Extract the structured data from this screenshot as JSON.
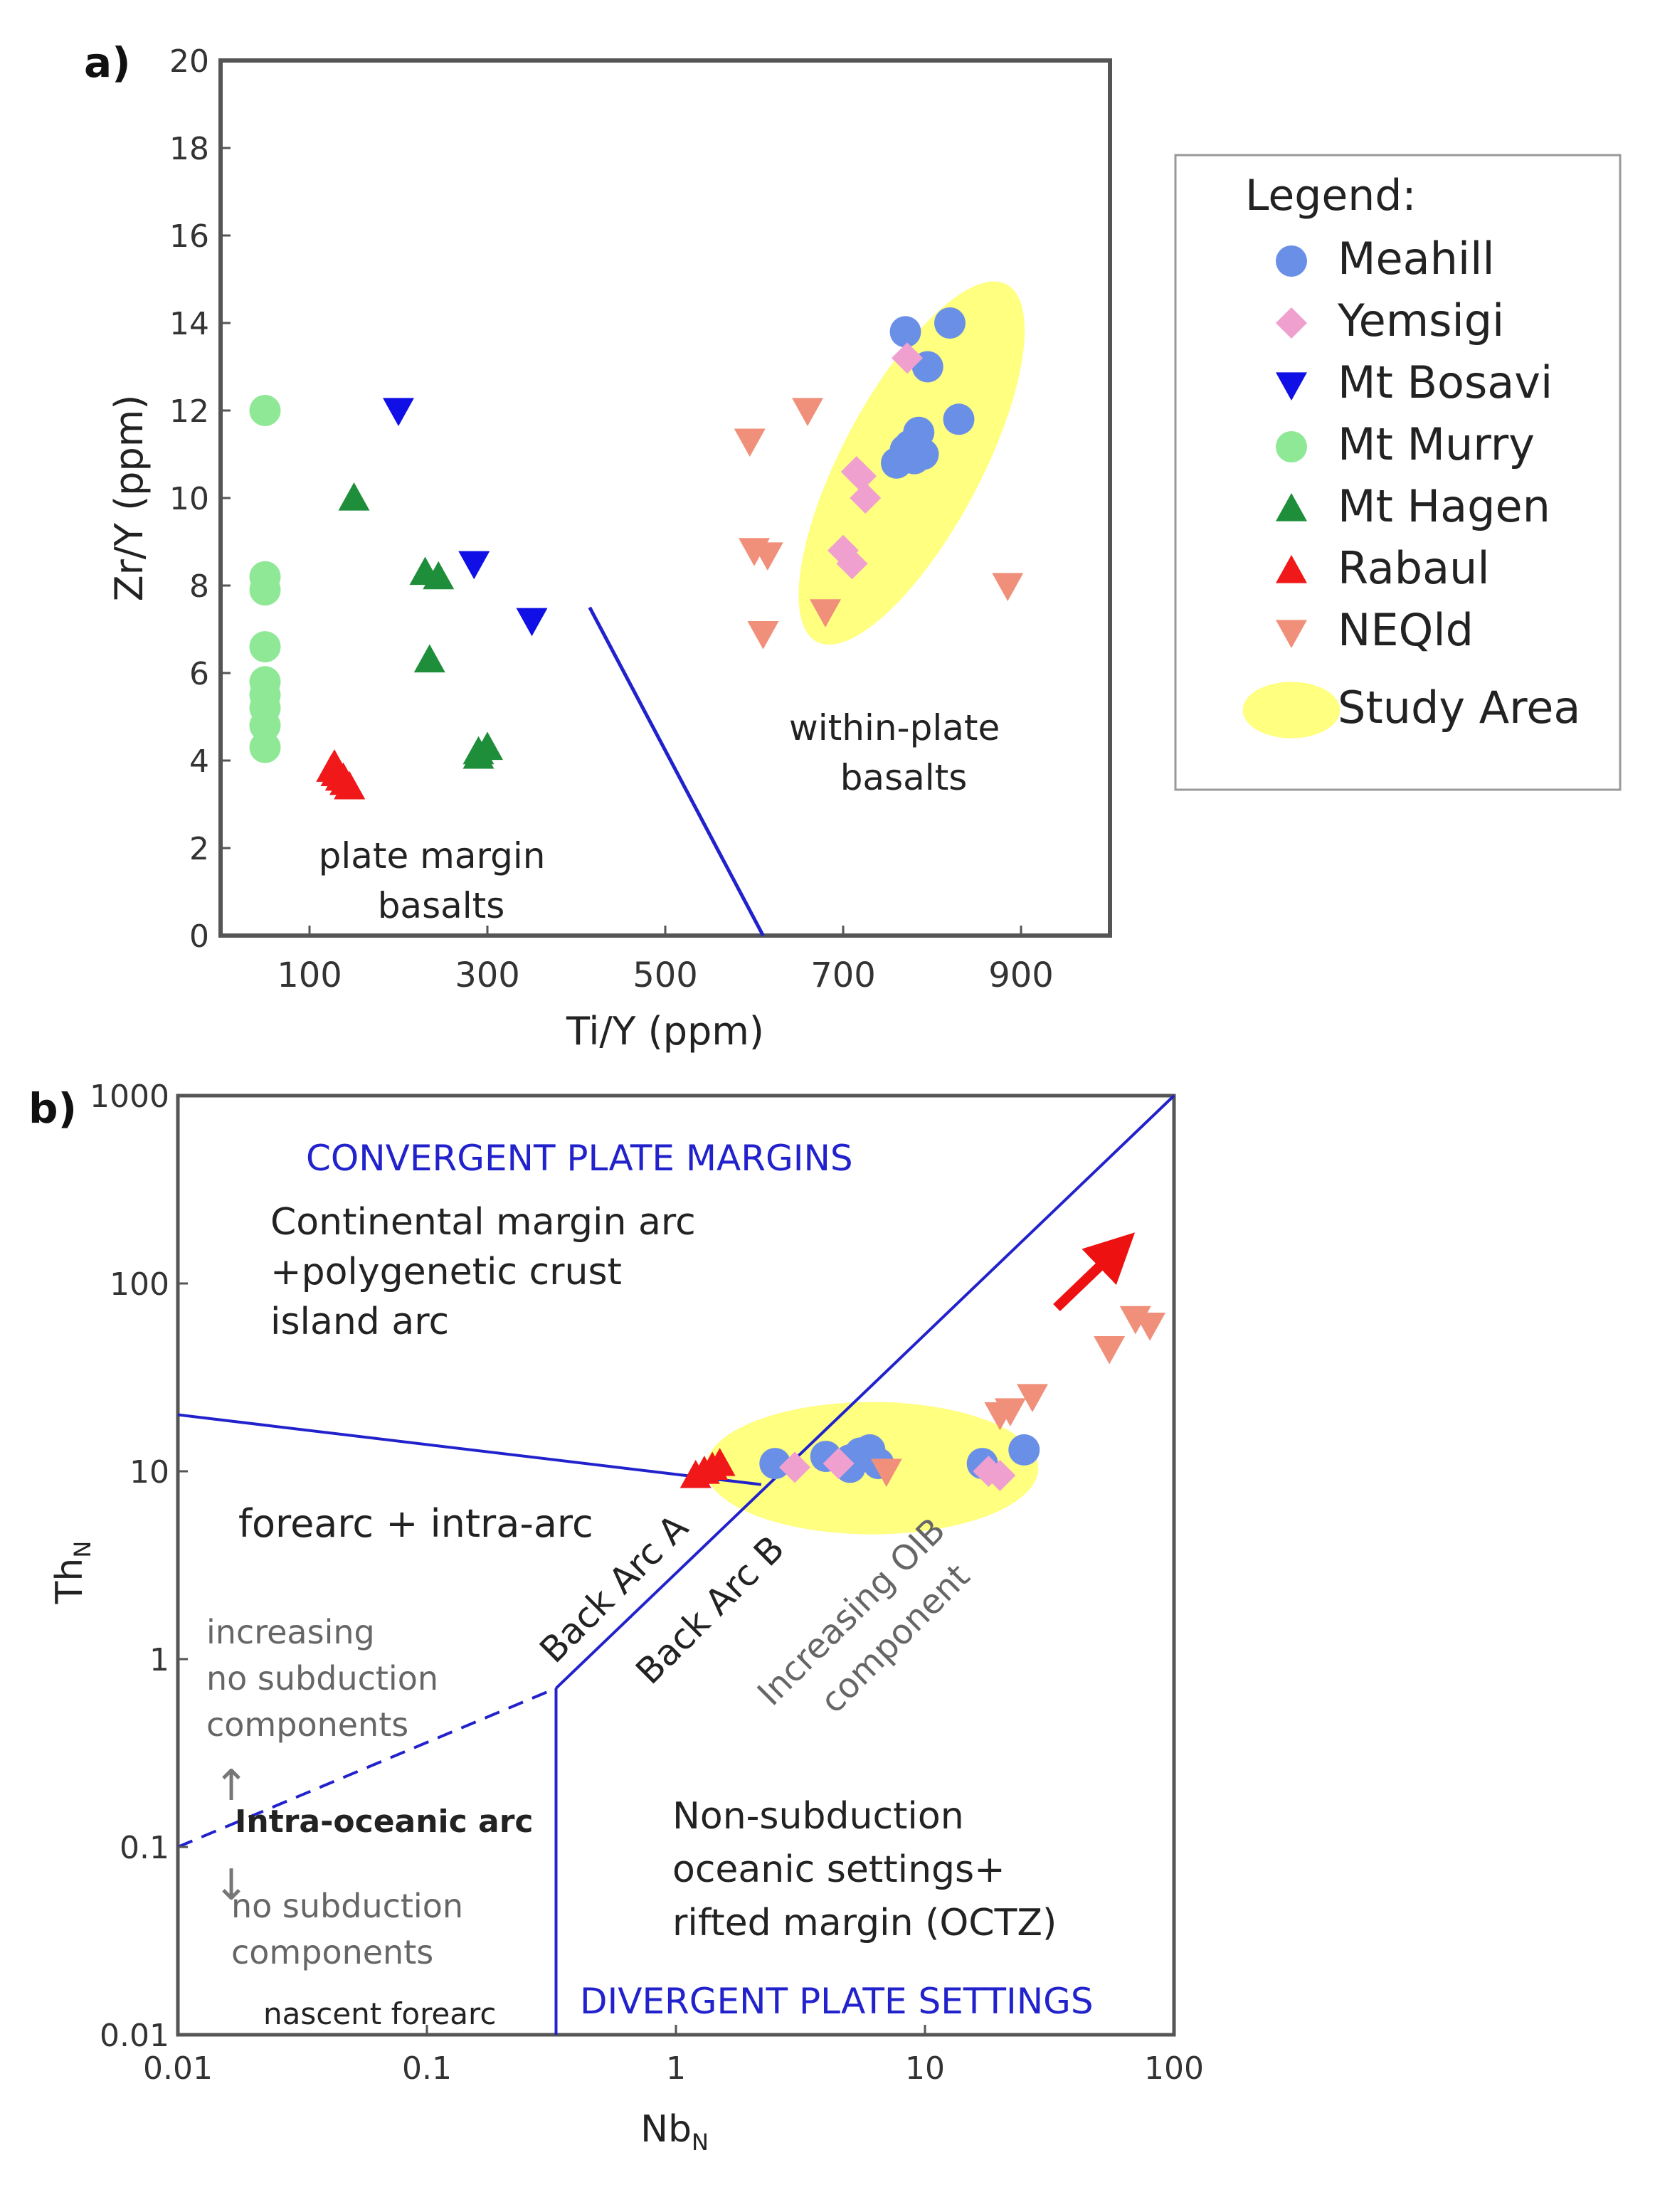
{
  "panel_labels": {
    "a": "a)",
    "b": "b)"
  },
  "legend": {
    "title": "Legend:",
    "items": [
      {
        "label": "Meahill",
        "marker": "circle",
        "color": "#6A8FE6"
      },
      {
        "label": "Yemsigi",
        "marker": "diamond",
        "color": "#F0A0CF"
      },
      {
        "label": "Mt Bosavi",
        "marker": "tri-down",
        "color": "#1010E6"
      },
      {
        "label": "Mt Murry",
        "marker": "circle",
        "color": "#8FE896"
      },
      {
        "label": "Mt Hagen",
        "marker": "tri-up",
        "color": "#1E8E3A"
      },
      {
        "label": "Rabaul",
        "marker": "tri-up",
        "color": "#F01818"
      },
      {
        "label": "NEQld",
        "marker": "tri-down",
        "color": "#F0907A"
      },
      {
        "label": "Study Area",
        "marker": "ellipse",
        "color": "#FFFF80"
      }
    ]
  },
  "colors": {
    "boundary": "#2222CC",
    "field_title": "#2222CC",
    "arrow": "#EE1111",
    "study_area": "#FFFF80"
  },
  "chart_data": [
    {
      "type": "scatter",
      "xlabel": "Ti/Y (ppm)",
      "ylabel": "Zr/Y (ppm)",
      "xlim": [
        0,
        1000
      ],
      "ylim": [
        0,
        20
      ],
      "xticks": [
        100,
        300,
        500,
        700,
        900
      ],
      "yticks": [
        0,
        2,
        4,
        6,
        8,
        10,
        12,
        14,
        16,
        18,
        20
      ],
      "grid": false,
      "boundary_line": {
        "x": [
          415,
          610
        ],
        "y": [
          7.5,
          0
        ]
      },
      "field_labels": [
        {
          "lines": [
            "plate margin",
            "basalts"
          ]
        },
        {
          "lines": [
            "within-plate",
            "basalts"
          ]
        }
      ],
      "study_area": {
        "center": [
          777,
          10.8
        ],
        "span_x": [
          650,
          910
        ]
      },
      "series": [
        {
          "name": "Meahill",
          "points": [
            [
              770,
              13.8
            ],
            [
              795,
              13
            ],
            [
              820,
              14
            ],
            [
              830,
              11.8
            ],
            [
              785,
              11.5
            ],
            [
              790,
              11
            ],
            [
              775,
              11.2
            ],
            [
              760,
              10.8
            ],
            [
              780,
              10.9
            ],
            [
              770,
              11.1
            ]
          ]
        },
        {
          "name": "Yemsigi",
          "points": [
            [
              772,
              13.2
            ],
            [
              720,
              10.5
            ],
            [
              725,
              10
            ],
            [
              715,
              10.6
            ],
            [
              700,
              8.8
            ],
            [
              710,
              8.5
            ]
          ]
        },
        {
          "name": "Mt Bosavi",
          "points": [
            [
              200,
              12
            ],
            [
              285,
              8.5
            ],
            [
              350,
              7.2
            ]
          ]
        },
        {
          "name": "Mt Murry",
          "points": [
            [
              50,
              12
            ],
            [
              50,
              8.2
            ],
            [
              50,
              7.9
            ],
            [
              50,
              6.6
            ],
            [
              50,
              5.8
            ],
            [
              50,
              5.5
            ],
            [
              50,
              5.2
            ],
            [
              50,
              4.8
            ],
            [
              50,
              4.3
            ]
          ]
        },
        {
          "name": "Mt Hagen",
          "points": [
            [
              150,
              10
            ],
            [
              230,
              8.3
            ],
            [
              235,
              6.3
            ],
            [
              245,
              8.2
            ],
            [
              290,
              4.1
            ],
            [
              300,
              4.3
            ],
            [
              290,
              4.2
            ]
          ]
        },
        {
          "name": "Rabaul",
          "points": [
            [
              125,
              3.8
            ],
            [
              135,
              3.6
            ],
            [
              140,
              3.5
            ],
            [
              130,
              3.7
            ],
            [
              145,
              3.4
            ],
            [
              128,
              3.9
            ],
            [
              138,
              3.6
            ]
          ]
        },
        {
          "name": "NEQld",
          "points": [
            [
              595,
              11.3
            ],
            [
              660,
              12
            ],
            [
              600,
              8.8
            ],
            [
              615,
              8.7
            ],
            [
              610,
              6.9
            ],
            [
              680,
              7.4
            ],
            [
              885,
              8
            ]
          ]
        }
      ]
    },
    {
      "type": "scatter",
      "xlabel": "Nb",
      "xlabel_sub": "N",
      "ylabel": "Th",
      "ylabel_sub": "N",
      "xscale": "log",
      "yscale": "log",
      "xlim": [
        0.01,
        100
      ],
      "ylim": [
        0.01,
        1000
      ],
      "xtick_labels": [
        "0.01",
        "0.1",
        "1",
        "10",
        "100"
      ],
      "ytick_labels": [
        "0.01",
        "0.1",
        "1",
        "10",
        "100",
        "1000"
      ],
      "grid": false,
      "boundaries": [
        {
          "style": "solid",
          "x": [
            0.01,
            2.2
          ],
          "y": [
            20,
            8.5
          ]
        },
        {
          "style": "solid",
          "x": [
            0.33,
            100
          ],
          "y": [
            0.7,
            1000
          ]
        },
        {
          "style": "dashed",
          "x": [
            0.01,
            0.33
          ],
          "y": [
            0.1,
            0.7
          ]
        },
        {
          "style": "solid",
          "x": [
            0.33,
            0.33
          ],
          "y": [
            0.7,
            0.01
          ]
        }
      ],
      "study_area": {
        "x": [
          1.5,
          25
        ],
        "y": [
          6,
          18
        ]
      },
      "field_titles": [
        "CONVERGENT PLATE MARGINS",
        "DIVERGENT PLATE SETTINGS"
      ],
      "field_labels": [
        {
          "lines": [
            "Continental margin arc",
            "+polygenetic crust",
            "island arc"
          ]
        },
        {
          "lines": [
            "forearc + intra-arc"
          ]
        },
        {
          "lines": [
            "increasing",
            "no subduction",
            "components"
          ]
        },
        {
          "lines": [
            "Intra-oceanic arc"
          ]
        },
        {
          "lines": [
            "no subduction",
            "components"
          ]
        },
        {
          "lines": [
            "nascent forearc"
          ]
        },
        {
          "lines": [
            "Non-subduction",
            "oceanic settings+",
            "rifted margin (OCTZ)"
          ]
        }
      ],
      "rotated_labels": [
        {
          "lines": [
            "Back Arc A"
          ]
        },
        {
          "lines": [
            "Back Arc B"
          ]
        },
        {
          "lines": [
            "Increasing OIB",
            "component"
          ]
        }
      ],
      "series": [
        {
          "name": "Meahill",
          "points": [
            [
              2.5,
              11
            ],
            [
              4,
              12
            ],
            [
              5,
              11.5
            ],
            [
              5.5,
              12.5
            ],
            [
              6,
              13
            ],
            [
              6.5,
              11
            ],
            [
              5,
              10.5
            ],
            [
              17,
              11
            ],
            [
              25,
              13
            ]
          ]
        },
        {
          "name": "Yemsigi",
          "points": [
            [
              3,
              10.5
            ],
            [
              4.5,
              11
            ],
            [
              18,
              10
            ],
            [
              20,
              9.5
            ]
          ]
        },
        {
          "name": "Rabaul",
          "points": [
            [
              1.2,
              9.5
            ],
            [
              1.4,
              10.5
            ],
            [
              1.5,
              11
            ],
            [
              1.3,
              10
            ]
          ]
        },
        {
          "name": "NEQld",
          "points": [
            [
              7,
              10
            ],
            [
              20,
              20
            ],
            [
              22,
              21
            ],
            [
              27,
              25
            ],
            [
              55,
              45
            ],
            [
              70,
              65
            ],
            [
              80,
              60
            ]
          ]
        }
      ]
    }
  ]
}
